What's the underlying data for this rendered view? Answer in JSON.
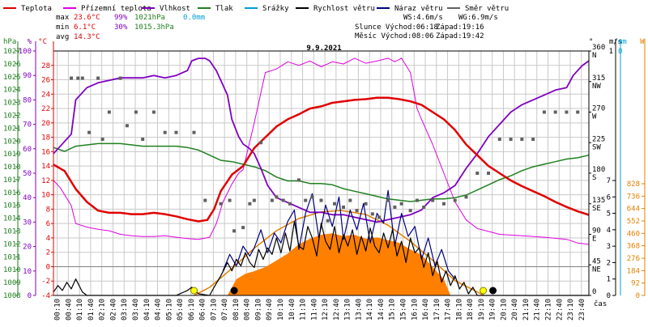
{
  "legend": [
    {
      "label": "Teplota",
      "color": "#e00000"
    },
    {
      "label": "Přízemní teplota",
      "color": "#e000e0"
    },
    {
      "label": "Vlhkost",
      "color": "#8000c0"
    },
    {
      "label": "Tlak",
      "color": "#208020"
    },
    {
      "label": "Srážky",
      "color": "#00a0d0"
    },
    {
      "label": "Rychlost větru",
      "color": "#000000"
    },
    {
      "label": "Náraz větru",
      "color": "#000080"
    },
    {
      "label": "Směr větru",
      "color": "#606060"
    }
  ],
  "stats": {
    "max_label": "max",
    "max_temp": "23.6°C",
    "max_hum": "99%",
    "max_press": "1021hPa",
    "rain": "0.0mm",
    "min_label": "min",
    "min_temp": "6.1°C",
    "min_hum": "30%",
    "min_press": "1015.3hPa",
    "avg_label": "avg",
    "avg_temp": "14.3°C",
    "ws": "WS:4.6m/s",
    "wg": "WG:6.9m/s",
    "sun_rise": "Slunce Východ:06:18",
    "sun_set": "Západ:19:16",
    "moon_rise": "Měsíc Východ:08:06",
    "moon_set": "Západ:19:42"
  },
  "colors": {
    "temp": "#e00000",
    "ground_temp": "#e000e0",
    "humidity": "#8000c0",
    "pressure": "#208020",
    "rain": "#00a0d0",
    "wind": "#000000",
    "gust": "#000080",
    "direction": "#606060",
    "solar": "#ff8000",
    "solar_curve": "#e08000",
    "grid": "#c8c8c8"
  },
  "chart_data": {
    "type": "line",
    "title": "9.9.2021",
    "x_label": "čas",
    "x_ticks": [
      "00:10",
      "00:40",
      "01:10",
      "01:40",
      "02:10",
      "02:40",
      "03:10",
      "03:40",
      "04:10",
      "04:40",
      "05:10",
      "05:40",
      "06:10",
      "06:40",
      "07:10",
      "07:40",
      "08:10",
      "08:40",
      "09:10",
      "09:40",
      "10:10",
      "10:40",
      "11:10",
      "11:40",
      "12:10",
      "12:40",
      "13:10",
      "13:40",
      "14:10",
      "14:40",
      "15:10",
      "15:40",
      "16:10",
      "16:40",
      "17:10",
      "17:40",
      "18:10",
      "18:40",
      "19:10",
      "19:40",
      "20:10",
      "20:40",
      "21:10",
      "21:40",
      "22:10",
      "22:40",
      "23:10",
      "23:40"
    ],
    "x_range_hours": [
      0,
      24
    ],
    "axes": {
      "pressure": {
        "label": "hPa",
        "min": 1008,
        "max": 1027,
        "ticks": [
          1008,
          1009,
          1010,
          1011,
          1012,
          1013,
          1014,
          1015,
          1016,
          1017,
          1018,
          1019,
          1020,
          1021,
          1022,
          1023,
          1024,
          1025,
          1026,
          1027
        ]
      },
      "humidity": {
        "label": "%",
        "min": 0,
        "max": 100,
        "ticks": [
          0,
          10,
          20,
          30,
          40,
          50,
          60,
          70,
          80,
          90,
          100
        ]
      },
      "temperature": {
        "label": "°C",
        "min": -4,
        "max": 30,
        "ticks": [
          -4,
          -2,
          0,
          2,
          4,
          6,
          8,
          10,
          12,
          14,
          16,
          18,
          20,
          22,
          24,
          26,
          28
        ]
      },
      "direction": {
        "label": "°",
        "ticks": [
          {
            "deg": "0",
            "dir": ""
          },
          {
            "deg": "45",
            "dir": "NE"
          },
          {
            "deg": "90",
            "dir": "E"
          },
          {
            "deg": "135",
            "dir": "SE"
          },
          {
            "deg": "180",
            "dir": "S"
          },
          {
            "deg": "225",
            "dir": "SW"
          },
          {
            "deg": "270",
            "dir": "W"
          },
          {
            "deg": "315",
            "dir": "NW"
          },
          {
            "deg": "360",
            "dir": "N"
          }
        ]
      },
      "wind": {
        "label": "m/s",
        "min": 0,
        "max": 7,
        "ticks": [
          0,
          1,
          2,
          3,
          4,
          5,
          6,
          7
        ],
        "top_tick": "1"
      },
      "rain": {
        "label": "mm",
        "top_tick": "0"
      },
      "solar": {
        "label": "W",
        "min": 0,
        "max": 828,
        "ticks": [
          0,
          92,
          184,
          276,
          368,
          460,
          552,
          644,
          736,
          828
        ]
      }
    },
    "series": [
      {
        "name": "Teplota",
        "axis": "temperature",
        "x": [
          0,
          0.5,
          1,
          1.5,
          2,
          2.5,
          3,
          3.5,
          4,
          4.5,
          5,
          5.5,
          6,
          6.5,
          6.9,
          7.2,
          7.5,
          8,
          8.5,
          9,
          9.5,
          10,
          10.5,
          11,
          11.5,
          12,
          12.5,
          13,
          13.5,
          14,
          14.5,
          15,
          15.5,
          16,
          16.5,
          17,
          17.5,
          18,
          18.5,
          19,
          19.5,
          20,
          20.5,
          21,
          21.5,
          22,
          22.5,
          23,
          23.5,
          24
        ],
        "y": [
          14.2,
          13.3,
          10.8,
          9.0,
          7.8,
          7.5,
          7.5,
          7.3,
          7.3,
          7.5,
          7.3,
          7.0,
          6.6,
          6.3,
          6.5,
          8.0,
          10.5,
          12.8,
          14.0,
          16.5,
          18.0,
          19.5,
          20.5,
          21.2,
          22.0,
          22.3,
          22.8,
          23.0,
          23.2,
          23.3,
          23.5,
          23.5,
          23.3,
          23.0,
          22.5,
          21.5,
          20.5,
          19.0,
          17.0,
          15.5,
          14.0,
          13.0,
          12.0,
          11.2,
          10.5,
          9.8,
          9.0,
          8.3,
          7.7,
          7.2
        ]
      },
      {
        "name": "Přízemní teplota",
        "axis": "temperature",
        "x": [
          0,
          0.3,
          0.8,
          1,
          1.5,
          2,
          2.5,
          3,
          3.5,
          4,
          4.5,
          5,
          5.5,
          6,
          6.5,
          7,
          7.3,
          7.6,
          8,
          8.3,
          8.5,
          9,
          9.5,
          10,
          10.5,
          11,
          11.5,
          12,
          12.5,
          13,
          13.5,
          14,
          14.5,
          15,
          15.3,
          15.6,
          16,
          16.3,
          16.5,
          17,
          17.5,
          18,
          18.5,
          19,
          19.5,
          20,
          21,
          22,
          23,
          23.5,
          24
        ],
        "y": [
          12.0,
          11.0,
          8.5,
          6.0,
          5.5,
          5.2,
          5.0,
          4.5,
          4.3,
          4.2,
          4.2,
          4.3,
          4.1,
          3.9,
          3.8,
          4.1,
          6.0,
          9.0,
          11.5,
          13.0,
          13.5,
          20.0,
          27.0,
          27.5,
          28.5,
          28.0,
          28.6,
          27.8,
          28.5,
          28.2,
          29.0,
          28.3,
          28.6,
          29.0,
          28.5,
          29.0,
          27.0,
          22.0,
          20.5,
          17.0,
          13.0,
          9.0,
          6.5,
          5.3,
          4.9,
          4.5,
          4.3,
          4.1,
          3.8,
          3.3,
          3.1
        ]
      },
      {
        "name": "Vlhkost",
        "axis": "humidity",
        "x": [
          0,
          0.4,
          0.8,
          1,
          1.5,
          2,
          2.5,
          3,
          3.5,
          4,
          4.5,
          5,
          5.5,
          6,
          6.2,
          6.5,
          6.8,
          7,
          7.3,
          7.8,
          8,
          8.3,
          8.5,
          8.8,
          9,
          9.3,
          9.6,
          10,
          10.5,
          11,
          11.5,
          12,
          12.5,
          13,
          13.5,
          14,
          14.5,
          15,
          15.5,
          16,
          16.5,
          17,
          17.5,
          18,
          18.5,
          19,
          19.5,
          20,
          20.5,
          21,
          21.5,
          22,
          22.5,
          23,
          23.3,
          23.7,
          24
        ],
        "y": [
          58,
          62,
          66,
          80,
          85,
          87,
          88,
          89,
          89,
          89,
          90,
          89,
          90,
          92,
          96,
          97,
          97,
          96,
          92,
          82,
          72,
          65,
          62,
          60,
          58,
          52,
          45,
          40,
          38,
          36,
          34,
          34,
          33,
          33,
          32,
          31,
          30,
          31,
          32,
          33,
          35,
          40,
          42,
          45,
          52,
          58,
          65,
          70,
          75,
          78,
          80,
          82,
          84,
          85,
          90,
          94,
          96
        ]
      },
      {
        "name": "Tlak",
        "axis": "pressure",
        "x": [
          0,
          0.5,
          1,
          1.5,
          2,
          2.5,
          3,
          3.5,
          4,
          4.5,
          5,
          5.5,
          6,
          6.5,
          7,
          7.5,
          8,
          8.5,
          9,
          9.5,
          10,
          10.5,
          11,
          11.5,
          12,
          12.5,
          13,
          13.5,
          14,
          14.5,
          15,
          15.5,
          16,
          16.5,
          17,
          17.5,
          18,
          18.5,
          19,
          19.5,
          20,
          20.5,
          21,
          21.5,
          22,
          22.5,
          23,
          23.5,
          24
        ],
        "y": [
          1019.5,
          1019.2,
          1019.6,
          1019.7,
          1019.8,
          1019.8,
          1019.8,
          1019.7,
          1019.6,
          1019.6,
          1019.6,
          1019.6,
          1019.5,
          1019.3,
          1018.9,
          1018.5,
          1018.4,
          1018.2,
          1018.0,
          1017.7,
          1017.2,
          1016.9,
          1016.9,
          1016.7,
          1016.7,
          1016.6,
          1016.3,
          1016.1,
          1015.9,
          1015.7,
          1015.5,
          1015.4,
          1015.3,
          1015.4,
          1015.5,
          1015.5,
          1015.6,
          1015.8,
          1016.2,
          1016.6,
          1017.0,
          1017.3,
          1017.7,
          1018.0,
          1018.2,
          1018.4,
          1018.6,
          1018.7,
          1018.9
        ]
      },
      {
        "name": "Rychlost větru",
        "axis": "wind",
        "x": [
          0,
          0.2,
          0.4,
          0.6,
          0.8,
          1,
          1.3,
          1.5,
          2,
          3,
          4,
          5,
          5.5,
          6,
          6.2,
          6.5,
          7,
          7.2,
          7.5,
          7.8,
          8,
          8.2,
          8.4,
          8.6,
          8.8,
          9,
          9.2,
          9.4,
          9.6,
          9.8,
          10,
          10.2,
          10.4,
          10.6,
          10.8,
          11,
          11.2,
          11.4,
          11.6,
          11.8,
          12,
          12.2,
          12.4,
          12.6,
          12.8,
          13,
          13.2,
          13.4,
          13.6,
          13.8,
          14,
          14.2,
          14.4,
          14.6,
          14.8,
          15,
          15.2,
          15.4,
          15.6,
          15.8,
          16,
          16.2,
          16.4,
          16.6,
          16.8,
          17,
          17.2,
          17.4,
          17.6,
          17.8,
          18,
          18.2,
          18.4,
          18.6,
          18.8,
          19,
          19.5,
          20,
          21,
          22,
          23,
          24
        ],
        "y": [
          0.2,
          0.6,
          0.3,
          0.8,
          0.4,
          1.0,
          0.2,
          0,
          0,
          0,
          0,
          0,
          0,
          0.3,
          0.5,
          0.1,
          0,
          0.5,
          1.2,
          2.0,
          1.5,
          2.2,
          1.8,
          2.6,
          2.0,
          1.7,
          2.8,
          2.2,
          2.9,
          2.5,
          3.5,
          2.6,
          3.8,
          2.7,
          4.5,
          3.0,
          2.8,
          4.2,
          3.5,
          2.4,
          4.4,
          3.3,
          2.8,
          4.2,
          2.6,
          3.7,
          3.0,
          4.0,
          2.5,
          3.6,
          2.7,
          4.1,
          3.0,
          2.6,
          3.8,
          2.9,
          4.0,
          2.4,
          3.3,
          2.0,
          3.5,
          2.6,
          2.9,
          1.7,
          2.6,
          1.2,
          2.1,
          0.8,
          1.5,
          0.6,
          1.2,
          0.4,
          0.8,
          0.1,
          0.5,
          0,
          0,
          0,
          0,
          0,
          0,
          0
        ]
      },
      {
        "name": "Náraz větru",
        "axis": "wind",
        "x": [
          7.6,
          7.9,
          8.2,
          8.5,
          8.8,
          9,
          9.3,
          9.6,
          9.9,
          10.2,
          10.5,
          10.8,
          11,
          11.3,
          11.6,
          11.9,
          12.2,
          12.5,
          12.8,
          13,
          13.3,
          13.6,
          13.9,
          14.2,
          14.5,
          14.8,
          15,
          15.3,
          15.6,
          15.9,
          16.2,
          16.5,
          16.8,
          17.1,
          17.4,
          17.7,
          18
        ],
        "y": [
          1.5,
          2.5,
          1.8,
          3.0,
          2.4,
          2.9,
          4.0,
          2.6,
          3.8,
          3.2,
          4.5,
          5.2,
          2.8,
          5.0,
          6.2,
          3.5,
          5.5,
          4.2,
          6.0,
          3.4,
          5.2,
          4.0,
          5.6,
          3.2,
          5.0,
          4.4,
          6.4,
          3.0,
          5.0,
          3.6,
          4.2,
          2.2,
          3.5,
          1.8,
          2.8,
          1.5,
          1.0
        ]
      },
      {
        "name": "Směr větru",
        "axis": "direction",
        "x": [
          0.8,
          1.1,
          1.3,
          1.6,
          2.0,
          2.2,
          2.5,
          3.0,
          3.3,
          3.7,
          4.0,
          4.5,
          5.0,
          5.5,
          6.3,
          6.8,
          7.5,
          7.9,
          8.1,
          8.5,
          8.8,
          9.0,
          9.3,
          9.8,
          10.0,
          10.3,
          10.6,
          11.0,
          11.3,
          11.6,
          12.0,
          12.3,
          12.6,
          13.0,
          13.3,
          13.6,
          14.0,
          14.3,
          14.6,
          15.0,
          15.3,
          15.6,
          16.0,
          16.3,
          16.6,
          17.0,
          17.5,
          18.0,
          18.5,
          19.0,
          19.5,
          20.0,
          20.5,
          21.0,
          21.5,
          22.0,
          22.5,
          23.0,
          23.5
        ],
        "y": [
          320,
          320,
          320,
          240,
          320,
          230,
          270,
          320,
          250,
          270,
          230,
          270,
          240,
          240,
          240,
          140,
          135,
          140,
          95,
          100,
          135,
          140,
          225,
          140,
          145,
          140,
          135,
          170,
          140,
          145,
          140,
          110,
          135,
          130,
          140,
          125,
          135,
          120,
          115,
          140,
          130,
          135,
          125,
          140,
          130,
          140,
          135,
          140,
          145,
          180,
          180,
          230,
          230,
          230,
          230,
          270,
          270,
          270,
          270
        ]
      }
    ],
    "solar_radiation": {
      "axis": "solar",
      "x": [
        7.8,
        8.2,
        8.6,
        9.0,
        9.5,
        10,
        10.5,
        11,
        11.5,
        12,
        12.5,
        13,
        13.5,
        14,
        14.5,
        15,
        15.5,
        16,
        16.5,
        17,
        17.5,
        17.8
      ],
      "y": [
        0,
        120,
        160,
        180,
        210,
        260,
        310,
        380,
        420,
        450,
        460,
        440,
        450,
        420,
        430,
        410,
        390,
        340,
        300,
        210,
        120,
        0
      ]
    },
    "solar_theoretical": {
      "axis": "solar",
      "x": [
        6.3,
        7,
        8,
        9,
        10,
        11,
        12,
        12.9,
        14,
        15,
        16,
        17,
        18,
        19.3
      ],
      "y": [
        0,
        60,
        200,
        350,
        480,
        570,
        620,
        630,
        600,
        520,
        400,
        260,
        110,
        0
      ]
    },
    "events": [
      {
        "name": "Slunce Východ",
        "time": "06:18",
        "symbol": "sun"
      },
      {
        "name": "Měsíc Východ",
        "time": "08:06",
        "symbol": "moon"
      },
      {
        "name": "Slunce Západ",
        "time": "19:16",
        "symbol": "sun"
      },
      {
        "name": "Měsíc Západ",
        "time": "19:42",
        "symbol": "moon"
      }
    ]
  }
}
